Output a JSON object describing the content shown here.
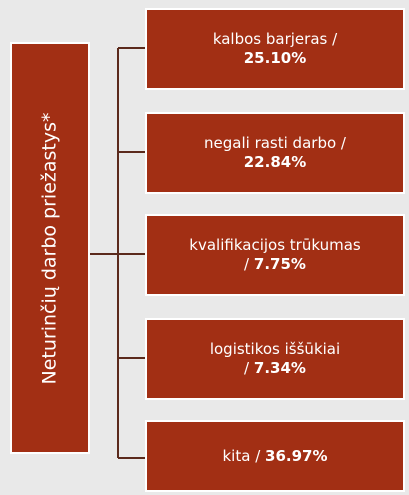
{
  "root": {
    "label": "Neturinčių darbo priežastys*"
  },
  "nodes": [
    {
      "label": "kalbos barjeras",
      "sep": "/",
      "value": "25.10%"
    },
    {
      "label": "negali rasti darbo",
      "sep": "/",
      "value": "22.84%"
    },
    {
      "label": "kvalifikacijos trūkumas",
      "sep": "/",
      "value": "7.75%"
    },
    {
      "label": "logistikos iššūkiai",
      "sep": "/",
      "value": "7.34%"
    },
    {
      "label": "kita",
      "sep": "/",
      "value": "36.97%"
    }
  ]
}
